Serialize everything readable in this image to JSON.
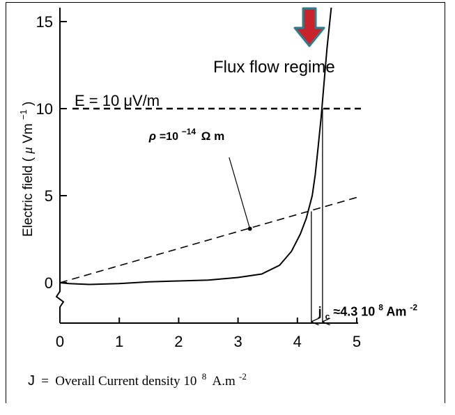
{
  "chart_data": {
    "type": "line",
    "xlabel": {
      "symbol": "J",
      "equals": "=",
      "text": "Overall Current density 10",
      "exp": "8",
      "unit": "A.m",
      "unit_exp": "-2"
    },
    "ylabel": {
      "text": "Electric field (",
      "unit_mu": "μ",
      "unit_rest": "Vm",
      "unit_exp": "−1",
      "close": ")"
    },
    "xlim": [
      0,
      5
    ],
    "ylim": [
      -2.4,
      15.8
    ],
    "x_ticks": [
      "0",
      "1",
      "2",
      "3",
      "4",
      "5"
    ],
    "y_ticks": [
      "0",
      "5",
      "10",
      "15"
    ],
    "grid": false,
    "series": [
      {
        "style": "solid",
        "points": [
          [
            0,
            0
          ],
          [
            0.15,
            -0.05
          ],
          [
            0.5,
            -0.1
          ],
          [
            1.0,
            -0.05
          ],
          [
            1.5,
            0.05
          ],
          [
            2.0,
            0.1
          ],
          [
            2.5,
            0.15
          ],
          [
            3.0,
            0.3
          ],
          [
            3.4,
            0.5
          ],
          [
            3.7,
            1.0
          ],
          [
            3.9,
            1.8
          ],
          [
            4.05,
            2.8
          ],
          [
            4.15,
            3.7
          ],
          [
            4.25,
            5.0
          ],
          [
            4.3,
            6.2
          ],
          [
            4.35,
            7.8
          ],
          [
            4.4,
            9.5
          ],
          [
            4.45,
            11.5
          ],
          [
            4.5,
            13.5
          ],
          [
            4.57,
            15.8
          ]
        ]
      },
      {
        "style": "dashed",
        "points": [
          [
            0,
            0
          ],
          [
            5,
            4.9
          ]
        ]
      }
    ],
    "threshold": {
      "y": 10,
      "label": "E = 10 μV/m"
    },
    "resistivity_label": {
      "rho": "ρ",
      "eq": "=10",
      "exp": "−14",
      "unit": "Ω m"
    },
    "resistivity_point": [
      3.2,
      3.1
    ],
    "regime_label": "Flux flow regime",
    "jc_label": {
      "j": "j",
      "sub": "c",
      "approx": "≈4.3 10",
      "exp": "8",
      "unit": "Am",
      "unit_exp": "-2"
    },
    "jc_arrows_x": [
      4.2,
      4.4
    ],
    "arrow_color": "#c8232c",
    "arrow_outline_color": "#2e7f8c"
  }
}
